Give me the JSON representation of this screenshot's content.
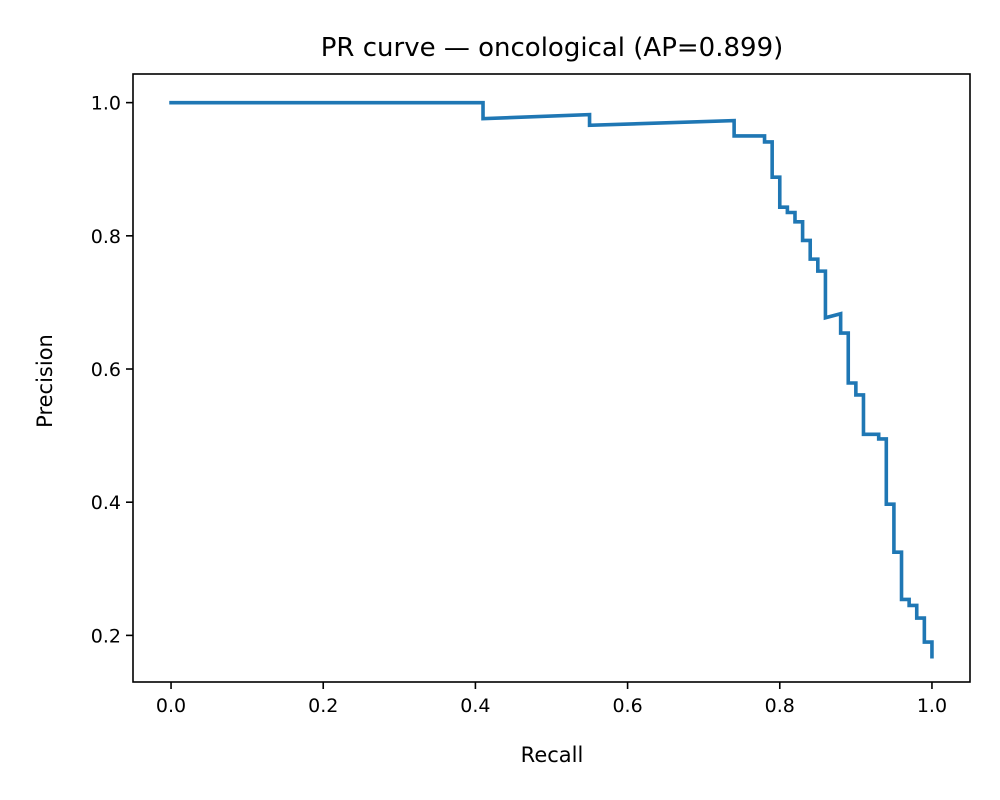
{
  "chart_data": {
    "type": "line",
    "title": "PR curve — oncological (AP=0.899)",
    "xlabel": "Recall",
    "ylabel": "Precision",
    "xlim": [
      -0.05,
      1.05
    ],
    "ylim": [
      0.13,
      1.043
    ],
    "xticks": [
      "0.0",
      "0.2",
      "0.4",
      "0.6",
      "0.8",
      "1.0"
    ],
    "yticks": [
      "0.2",
      "0.4",
      "0.6",
      "0.8",
      "1.0"
    ],
    "grid": false,
    "legend": "none",
    "series": [
      {
        "color": "#1f77b4",
        "step": "post",
        "x": [
          0.0,
          0.41,
          0.41,
          0.55,
          0.55,
          0.74,
          0.74,
          0.78,
          0.78,
          0.79,
          0.79,
          0.8,
          0.8,
          0.81,
          0.81,
          0.82,
          0.82,
          0.83,
          0.83,
          0.84,
          0.84,
          0.85,
          0.85,
          0.86,
          0.86,
          0.88,
          0.88,
          0.89,
          0.89,
          0.9,
          0.9,
          0.91,
          0.91,
          0.93,
          0.93,
          0.94,
          0.94,
          0.95,
          0.95,
          0.96,
          0.96,
          0.97,
          0.97,
          0.98,
          0.98,
          0.99,
          0.99,
          1.0,
          1.0
        ],
        "y": [
          1.0,
          1.0,
          0.976,
          0.982,
          0.966,
          0.973,
          0.95,
          0.95,
          0.941,
          0.941,
          0.888,
          0.888,
          0.843,
          0.843,
          0.835,
          0.835,
          0.821,
          0.821,
          0.793,
          0.793,
          0.765,
          0.765,
          0.747,
          0.747,
          0.677,
          0.683,
          0.654,
          0.654,
          0.579,
          0.579,
          0.561,
          0.561,
          0.502,
          0.502,
          0.495,
          0.495,
          0.397,
          0.397,
          0.325,
          0.325,
          0.254,
          0.254,
          0.245,
          0.245,
          0.226,
          0.226,
          0.19,
          0.19,
          0.168
        ]
      }
    ]
  }
}
